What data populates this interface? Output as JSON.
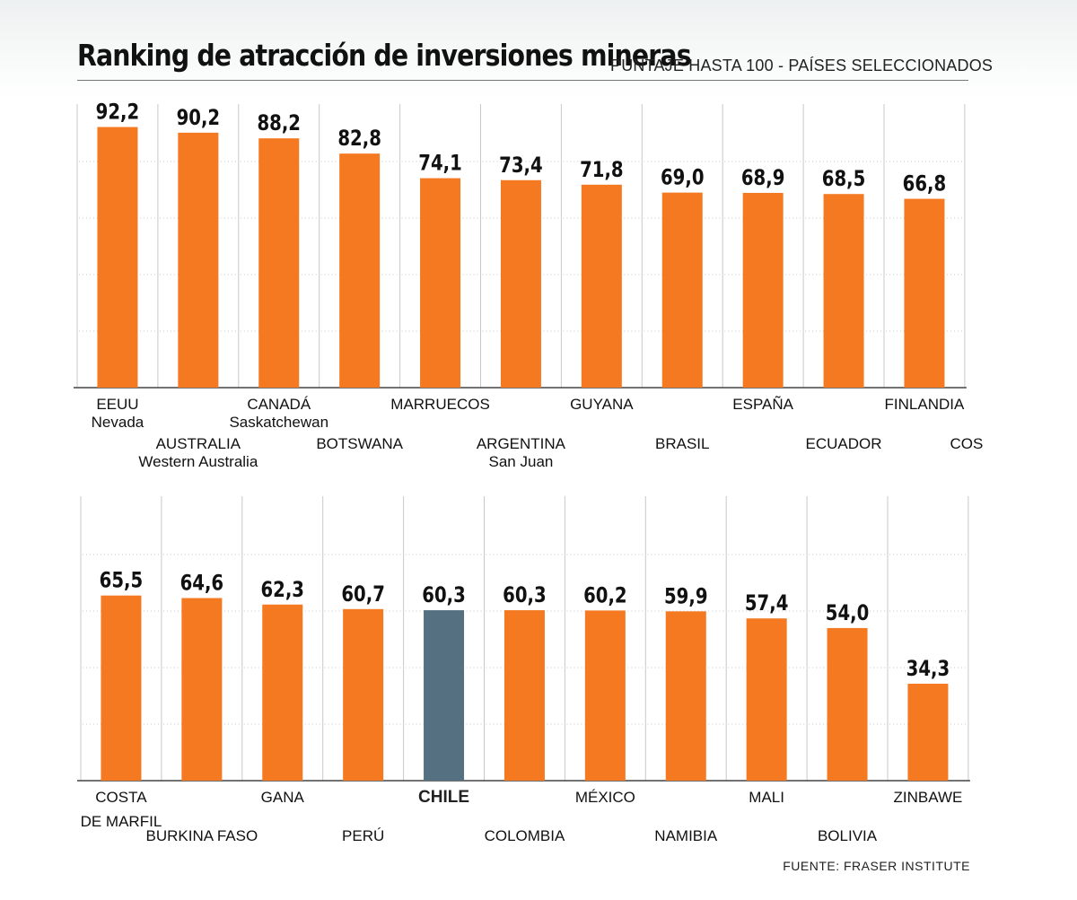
{
  "title": "Ranking de atracción de inversiones mineras",
  "subtitle": "PUNTAJE HASTA 100 - PAÍSES SELECCIONADOS",
  "source": "FUENTE: FRASER INSTITUTE",
  "colors": {
    "bar": "#f47920",
    "highlight": "#557080",
    "grid": "#c8c8c8",
    "axis": "#444444"
  },
  "chart_data": [
    {
      "type": "bar",
      "title": "",
      "ylim": [
        0,
        100
      ],
      "grid": true,
      "categories": [
        [
          "EEUU",
          "Nevada"
        ],
        [
          "AUSTRALIA",
          "Western Australia"
        ],
        [
          "CANADÁ",
          "Saskatchewan"
        ],
        [
          "BOTSWANA"
        ],
        [
          "MARRUECOS"
        ],
        [
          "ARGENTINA",
          "San Juan"
        ],
        [
          "GUYANA"
        ],
        [
          "BRASIL"
        ],
        [
          "ESPAÑA"
        ],
        [
          "ECUADOR"
        ],
        [
          "FINLANDIA"
        ]
      ],
      "values": [
        92.2,
        90.2,
        88.2,
        82.8,
        74.1,
        73.4,
        71.8,
        69.0,
        68.9,
        68.5,
        66.8
      ],
      "value_labels": [
        "92,2",
        "90,2",
        "88,2",
        "82,8",
        "74,1",
        "73,4",
        "71,8",
        "69,0",
        "68,9",
        "68,5",
        "66,8"
      ],
      "overflow_label": "COS"
    },
    {
      "type": "bar",
      "title": "",
      "ylim": [
        0,
        100
      ],
      "grid": true,
      "highlight": "CHILE",
      "categories": [
        [
          "COSTA",
          "DE MARFIL"
        ],
        [
          "BURKINA FASO"
        ],
        [
          "GANA"
        ],
        [
          "PERÚ"
        ],
        [
          "CHILE"
        ],
        [
          "COLOMBIA"
        ],
        [
          "MÉXICO"
        ],
        [
          "NAMIBIA"
        ],
        [
          "MALI"
        ],
        [
          "BOLIVIA"
        ],
        [
          "ZINBAWE"
        ]
      ],
      "values": [
        65.5,
        64.6,
        62.3,
        60.7,
        60.3,
        60.3,
        60.2,
        59.9,
        57.4,
        54.0,
        34.3
      ],
      "value_labels": [
        "65,5",
        "64,6",
        "62,3",
        "60,7",
        "60,3",
        "60,3",
        "60,2",
        "59,9",
        "57,4",
        "54,0",
        "34,3"
      ]
    }
  ]
}
